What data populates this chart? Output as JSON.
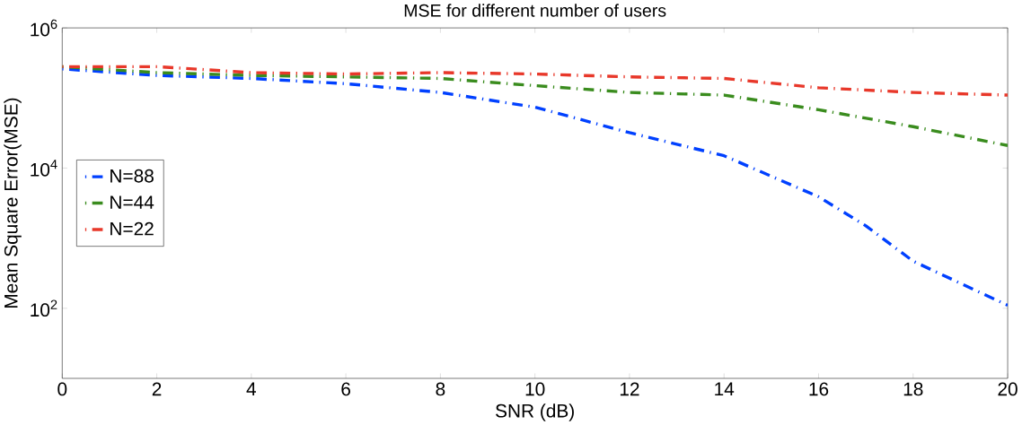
{
  "chart_data": {
    "type": "line",
    "title": "MSE for different number of users",
    "xlabel": "SNR (dB)",
    "ylabel": "Mean Square Error(MSE)",
    "x": [
      0,
      2,
      4,
      6,
      8,
      10,
      12,
      14,
      16,
      18,
      20
    ],
    "series": [
      {
        "name": "N=88",
        "color": "#0040ff",
        "x": [
          0,
          2,
          4,
          6,
          8,
          10,
          12,
          14,
          16,
          17,
          18,
          20
        ],
        "values": [
          260000,
          210000,
          190000,
          160000,
          120000,
          74000,
          32000,
          15000,
          3900,
          1500,
          470,
          110
        ]
      },
      {
        "name": "N=44",
        "color": "#3a8c1e",
        "values": [
          280000,
          230000,
          210000,
          200000,
          190000,
          150000,
          120000,
          110000,
          68000,
          39000,
          21000
        ]
      },
      {
        "name": "N=22",
        "color": "#e8382a",
        "values": [
          280000,
          280000,
          230000,
          220000,
          230000,
          220000,
          200000,
          190000,
          140000,
          120000,
          110000
        ]
      }
    ],
    "log": "y",
    "xlim": [
      0,
      20
    ],
    "ylim": [
      10,
      1000000
    ],
    "xticks": [
      0,
      2,
      4,
      6,
      8,
      10,
      12,
      14,
      16,
      18,
      20
    ],
    "yticks": [
      {
        "value": 100,
        "label": "10$^{2}$"
      },
      {
        "value": 10000,
        "label": "10$^{4}$"
      },
      {
        "value": 1000000,
        "label": "10$^{6}$"
      }
    ],
    "grid": false,
    "legend": "left",
    "line_style": "dashdot",
    "marker": "none"
  }
}
